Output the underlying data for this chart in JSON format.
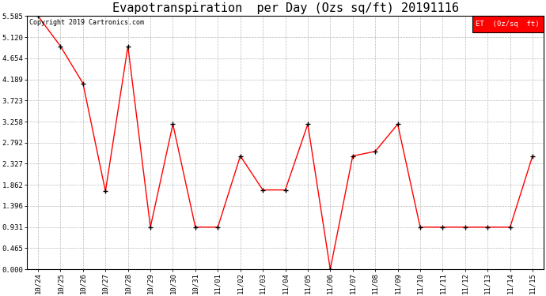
{
  "title": "Evapotranspiration  per Day (Ozs sq/ft) 20191116",
  "copyright": "Copyright 2019 Cartronics.com",
  "legend_label": "ET  (0z/sq  ft)",
  "x_labels": [
    "10/24",
    "10/25",
    "10/26",
    "10/27",
    "10/28",
    "10/29",
    "10/30",
    "10/31",
    "11/01",
    "11/02",
    "11/03",
    "11/04",
    "11/05",
    "11/06",
    "11/07",
    "11/08",
    "11/09",
    "11/10",
    "11/11",
    "11/12",
    "11/13",
    "11/14",
    "11/15"
  ],
  "y_values": [
    5.585,
    4.92,
    4.1,
    1.72,
    4.92,
    0.93,
    3.2,
    0.93,
    0.93,
    2.5,
    1.75,
    1.75,
    3.2,
    0.0,
    2.5,
    2.6,
    3.2,
    0.93,
    0.93,
    0.93,
    0.93,
    0.93,
    2.5
  ],
  "y_ticks": [
    0.0,
    0.465,
    0.931,
    1.396,
    1.862,
    2.327,
    2.792,
    3.258,
    3.723,
    4.189,
    4.654,
    5.12,
    5.585
  ],
  "line_color": "red",
  "marker_color": "black",
  "background_color": "#ffffff",
  "grid_color": "#bbbbbb",
  "legend_bg": "red",
  "legend_text_color": "white",
  "title_fontsize": 11,
  "copyright_fontsize": 6,
  "tick_fontsize": 6.5,
  "ylim": [
    0.0,
    5.585
  ]
}
